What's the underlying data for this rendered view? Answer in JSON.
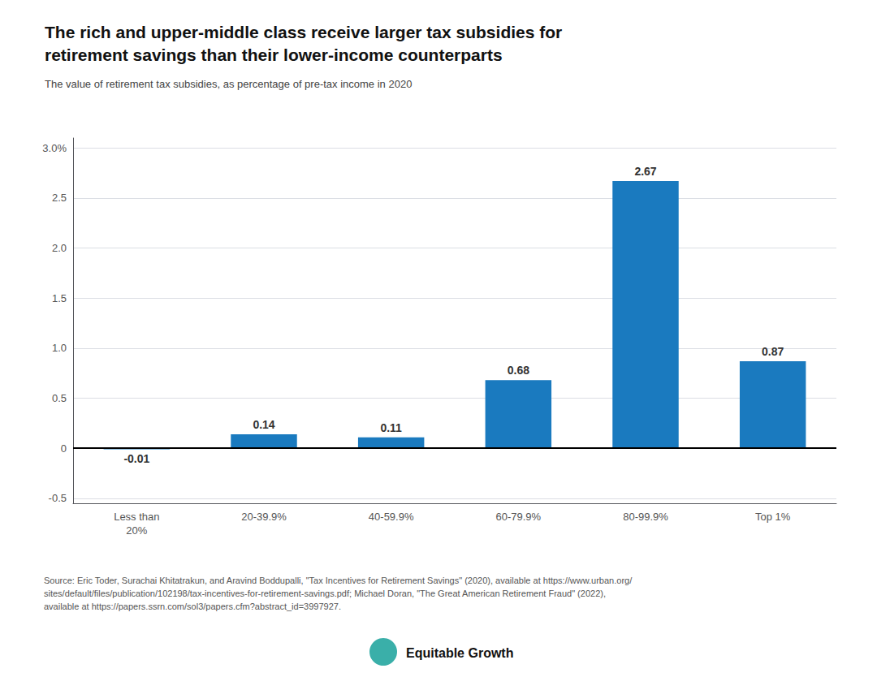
{
  "chart_data": {
    "type": "bar",
    "title": "The rich and upper-middle class receive larger tax subsidies for\nretirement savings than their lower-income counterparts",
    "subtitle": "The value of retirement tax subsidies, as percentage of pre-tax income in 2020",
    "categories": [
      "Less than\n20%",
      "20-39.9%",
      "40-59.9%",
      "60-79.9%",
      "80-99.9%",
      "Top 1%"
    ],
    "values": [
      -0.01,
      0.14,
      0.11,
      0.68,
      2.67,
      0.87
    ],
    "color": "#1a7abf",
    "ylim": [
      -0.55,
      3.1
    ],
    "yticks": [
      -0.5,
      0,
      0.5,
      {
        "value": 1,
        "label": "1.0"
      },
      1.5,
      {
        "value": 2,
        "label": "2.0"
      },
      2.5,
      {
        "value": 3,
        "label": "3.0%"
      }
    ],
    "grid": true,
    "data_labels": true,
    "annotations": [
      "Source: Eric Toder, Surachai Khitatrakun, and Aravind Boddupalli, \"Tax Incentives for Retirement Savings\" (2020), available at https://www.urban.org/\nsites/default/files/publication/102198/tax-incentives-for-retirement-savings.pdf; Michael Doran, \"The Great American Retirement Fraud\" (2022),\navailable at https://papers.ssrn.com/sol3/papers.cfm?abstract_id=3997927.",
      "Equitable Growth"
    ]
  }
}
